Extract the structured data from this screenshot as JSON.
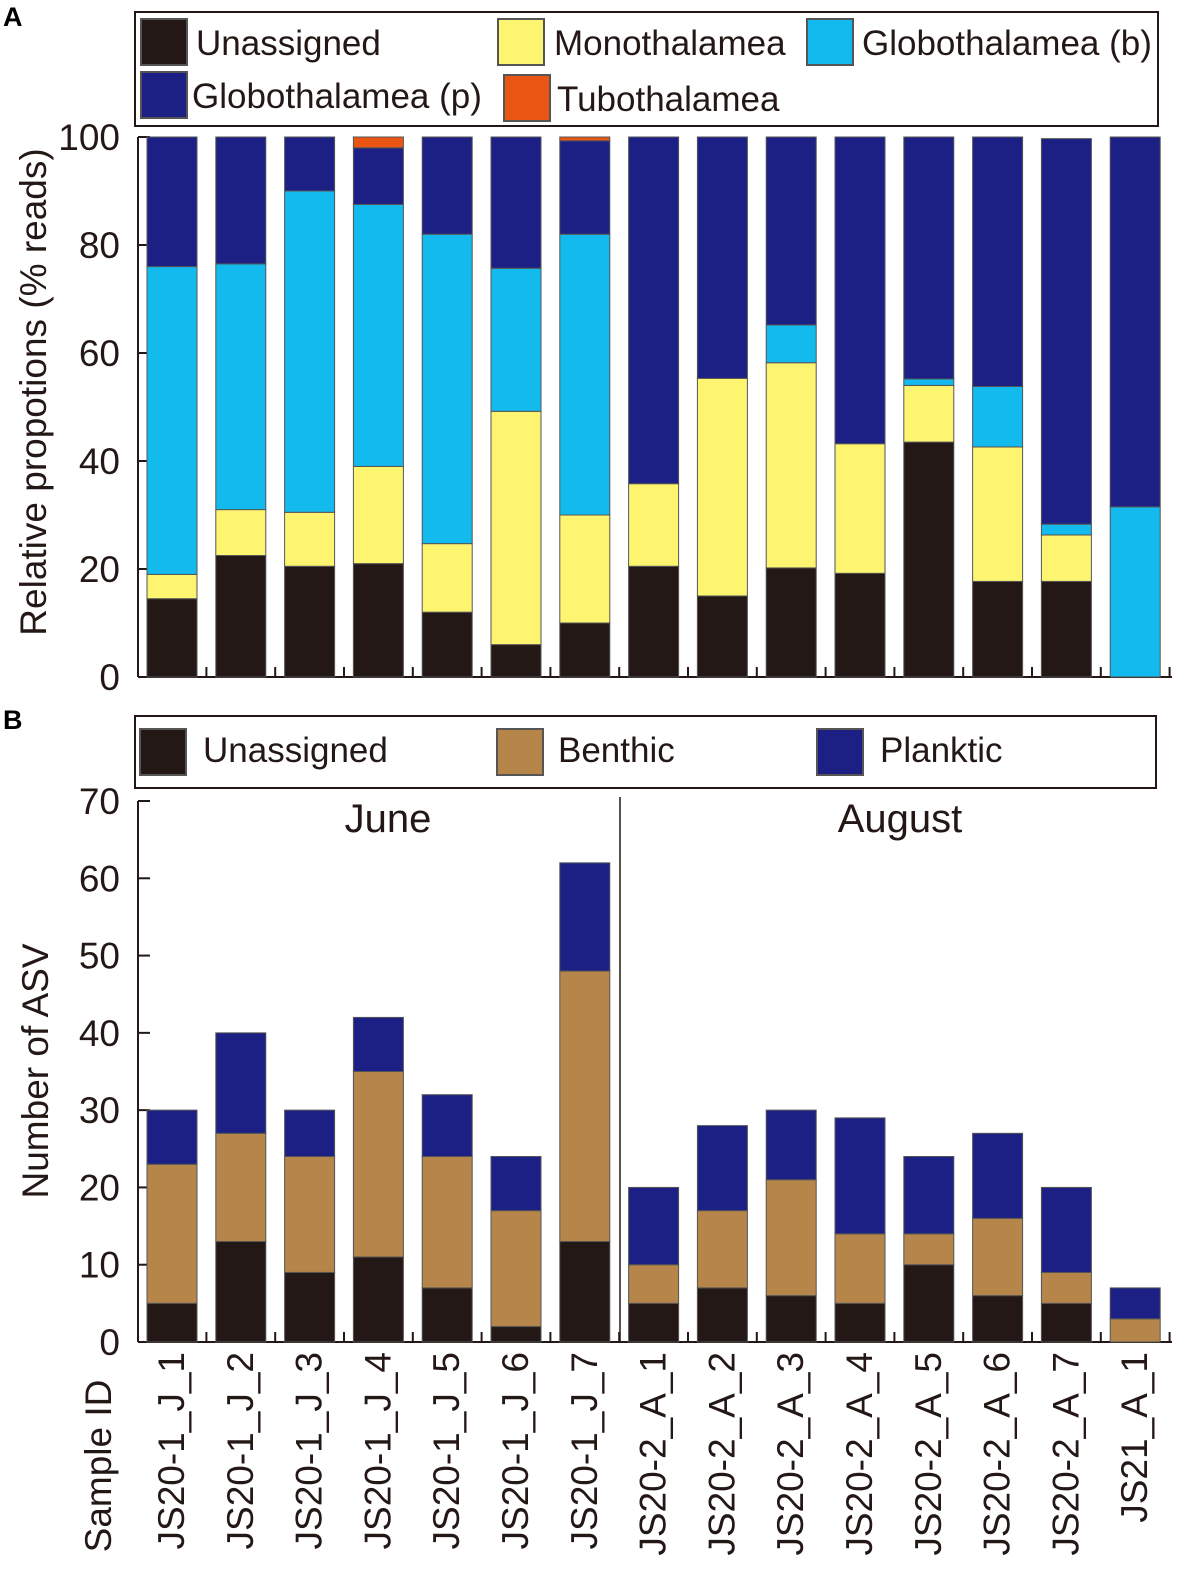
{
  "samples": [
    "JS20-1_J_1",
    "JS20-1_J_2",
    "JS20-1_J_3",
    "JS20-1_J_4",
    "JS20-1_J_5",
    "JS20-1_J_6",
    "JS20-1_J_7",
    "JS20-2_A_1",
    "JS20-2_A_2",
    "JS20-2_A_3",
    "JS20-2_A_4",
    "JS20-2_A_5",
    "JS20-2_A_6",
    "JS20-2_A_7",
    "JS21_A_1"
  ],
  "sample_axis_label": "Sample ID",
  "colors": {
    "unassigned": "#231815",
    "monothalamea": "#fdf570",
    "globo_b": "#12baee",
    "globo_p": "#1c2085",
    "tubo": "#ea5513",
    "benthic": "#b5854a",
    "planktic": "#1c2085"
  },
  "chart_data": [
    {
      "panel": "A",
      "type": "bar",
      "stacked": true,
      "ylabel": "Relative propotions (% reads)",
      "ylim": [
        0,
        100
      ],
      "yticks": [
        0,
        20,
        40,
        60,
        80,
        100
      ],
      "categories": [
        "JS20-1_J_1",
        "JS20-1_J_2",
        "JS20-1_J_3",
        "JS20-1_J_4",
        "JS20-1_J_5",
        "JS20-1_J_6",
        "JS20-1_J_7",
        "JS20-2_A_1",
        "JS20-2_A_2",
        "JS20-2_A_3",
        "JS20-2_A_4",
        "JS20-2_A_5",
        "JS20-2_A_6",
        "JS20-2_A_7",
        "JS21_A_1"
      ],
      "legend_placement": "top",
      "series": [
        {
          "name": "Unassigned",
          "color_key": "unassigned",
          "values": [
            14.5,
            22.5,
            20.5,
            21,
            12,
            6,
            10,
            20.5,
            15,
            20.2,
            19.2,
            43.5,
            17.7,
            17.7,
            0
          ]
        },
        {
          "name": "Monothalamea",
          "color_key": "monothalamea",
          "values": [
            4.5,
            8.5,
            10,
            18,
            12.7,
            43.2,
            20,
            15.3,
            40.3,
            38,
            24,
            10.5,
            24.9,
            8.6,
            0
          ]
        },
        {
          "name": "Globothalamea (b)",
          "color_key": "globo_b",
          "values": [
            57,
            45.5,
            59.5,
            48.5,
            57.3,
            26.5,
            52,
            0,
            0,
            7,
            0,
            1.2,
            11.2,
            2,
            31.5
          ]
        },
        {
          "name": "Globothalamea (p)",
          "color_key": "globo_p",
          "values": [
            24,
            23.5,
            10,
            10.5,
            18,
            24.3,
            17.3,
            64.2,
            44.7,
            34.8,
            56.8,
            44.8,
            46.2,
            71.4,
            68.5
          ]
        },
        {
          "name": "Tubothalamea",
          "color_key": "tubo",
          "values": [
            0,
            0,
            0,
            2,
            0,
            0,
            0.7,
            0,
            0,
            0,
            0,
            0,
            0,
            0,
            0
          ]
        }
      ],
      "legend": [
        "Unassigned",
        "Monothalamea",
        "Globothalamea (b)",
        "Globothalamea (p)",
        "Tubothalamea"
      ]
    },
    {
      "panel": "B",
      "type": "bar",
      "stacked": true,
      "ylabel": "Number of ASV",
      "ylim": [
        0,
        70
      ],
      "yticks": [
        0,
        10,
        20,
        30,
        40,
        50,
        60,
        70
      ],
      "categories": [
        "JS20-1_J_1",
        "JS20-1_J_2",
        "JS20-1_J_3",
        "JS20-1_J_4",
        "JS20-1_J_5",
        "JS20-1_J_6",
        "JS20-1_J_7",
        "JS20-2_A_1",
        "JS20-2_A_2",
        "JS20-2_A_3",
        "JS20-2_A_4",
        "JS20-2_A_5",
        "JS20-2_A_6",
        "JS20-2_A_7",
        "JS21_A_1"
      ],
      "legend_placement": "top",
      "annotations": [
        "June",
        "August"
      ],
      "series": [
        {
          "name": "Unassigned",
          "color_key": "unassigned",
          "values": [
            5,
            13,
            9,
            11,
            7,
            2,
            13,
            5,
            7,
            6,
            5,
            10,
            6,
            5,
            0
          ]
        },
        {
          "name": "Benthic",
          "color_key": "benthic",
          "values": [
            18,
            14,
            15,
            24,
            17,
            15,
            35,
            5,
            10,
            15,
            9,
            4,
            10,
            4,
            3
          ]
        },
        {
          "name": "Planktic",
          "color_key": "planktic",
          "values": [
            7,
            13,
            6,
            7,
            8,
            7,
            14,
            10,
            11,
            9,
            15,
            10,
            11,
            11,
            4
          ]
        }
      ],
      "legend": [
        "Unassigned",
        "Benthic",
        "Planktic"
      ]
    }
  ]
}
